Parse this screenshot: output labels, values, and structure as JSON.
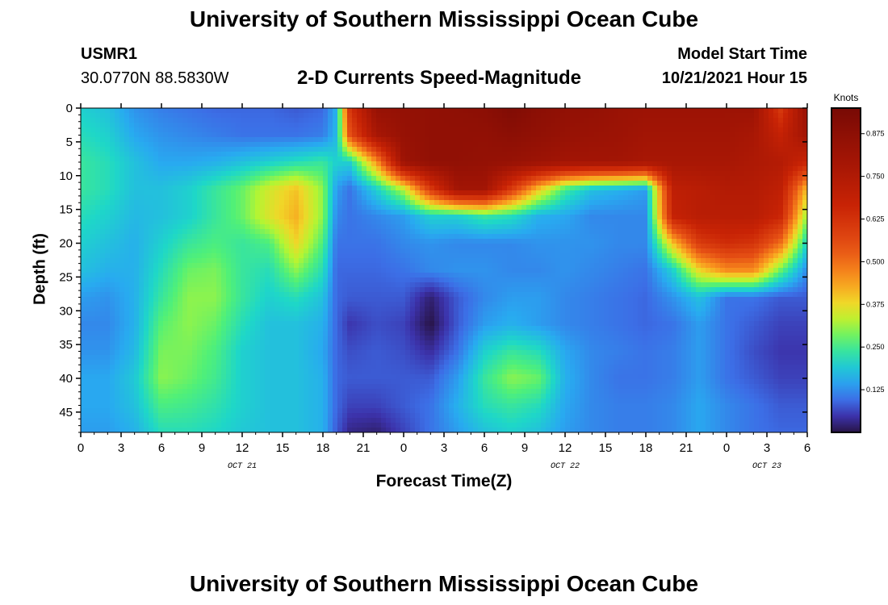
{
  "header": {
    "title": "University of Southern Mississippi Ocean Cube",
    "station": "USMR1",
    "coords": "30.0770N  88.5830W",
    "subtitle": "2-D Currents Speed-Magnitude",
    "model_label": "Model Start Time",
    "model_time": "10/21/2021 Hour 15"
  },
  "footer": {
    "title": "University of Southern Mississippi Ocean Cube"
  },
  "chart_data": {
    "type": "heatmap",
    "ylabel": "Depth (ft)",
    "xlabel": "Forecast Time(Z)",
    "colorbar_label": "Knots",
    "colorbar_ticks": [
      "0.875",
      "0.750",
      "0.625",
      "0.500",
      "0.375",
      "0.250",
      "0.125"
    ],
    "colorbar_tick_values": [
      0.875,
      0.75,
      0.625,
      0.5,
      0.375,
      0.25,
      0.125
    ],
    "value_range": [
      0,
      0.95
    ],
    "x_ticks": [
      "0",
      "3",
      "6",
      "9",
      "12",
      "15",
      "18",
      "21",
      "0",
      "3",
      "6",
      "9",
      "12",
      "15",
      "18",
      "21",
      "0",
      "3",
      "6"
    ],
    "x_range_hours": [
      0,
      54
    ],
    "date_labels": [
      {
        "label": "OCT 21",
        "hour": 12
      },
      {
        "label": "OCT 22",
        "hour": 36
      },
      {
        "label": "OCT 23",
        "hour": 51
      }
    ],
    "y_ticks": [
      "0",
      "5",
      "10",
      "15",
      "20",
      "25",
      "30",
      "35",
      "40",
      "45"
    ],
    "y_range": [
      0,
      48
    ],
    "depths": [
      0,
      4,
      8,
      12,
      16,
      20,
      24,
      28,
      32,
      36,
      40,
      44,
      48
    ],
    "hours": [
      0,
      2,
      4,
      6,
      8,
      10,
      12,
      14,
      16,
      18,
      19,
      20,
      22,
      24,
      26,
      28,
      30,
      32,
      34,
      36,
      38,
      40,
      42,
      44,
      46,
      48,
      50,
      52,
      54
    ],
    "values": [
      [
        0.2,
        0.18,
        0.13,
        0.11,
        0.1,
        0.09,
        0.09,
        0.09,
        0.08,
        0.09,
        0.16,
        0.62,
        0.84,
        0.85,
        0.86,
        0.87,
        0.88,
        0.92,
        0.88,
        0.86,
        0.85,
        0.83,
        0.82,
        0.82,
        0.82,
        0.82,
        0.82,
        0.6,
        0.84
      ],
      [
        0.22,
        0.2,
        0.15,
        0.13,
        0.12,
        0.11,
        0.1,
        0.1,
        0.1,
        0.11,
        0.17,
        0.55,
        0.78,
        0.84,
        0.86,
        0.86,
        0.86,
        0.88,
        0.86,
        0.84,
        0.83,
        0.82,
        0.8,
        0.8,
        0.8,
        0.8,
        0.78,
        0.68,
        0.8
      ],
      [
        0.24,
        0.22,
        0.18,
        0.15,
        0.15,
        0.16,
        0.18,
        0.2,
        0.22,
        0.24,
        0.2,
        0.2,
        0.45,
        0.82,
        0.86,
        0.86,
        0.85,
        0.84,
        0.82,
        0.8,
        0.8,
        0.8,
        0.78,
        0.78,
        0.78,
        0.78,
        0.76,
        0.74,
        0.66
      ],
      [
        0.24,
        0.22,
        0.18,
        0.18,
        0.2,
        0.24,
        0.28,
        0.35,
        0.4,
        0.3,
        0.14,
        0.1,
        0.2,
        0.33,
        0.6,
        0.8,
        0.8,
        0.6,
        0.4,
        0.25,
        0.18,
        0.16,
        0.14,
        0.7,
        0.72,
        0.74,
        0.74,
        0.7,
        0.4
      ],
      [
        0.22,
        0.2,
        0.17,
        0.18,
        0.2,
        0.24,
        0.28,
        0.36,
        0.42,
        0.3,
        0.12,
        0.1,
        0.12,
        0.14,
        0.2,
        0.2,
        0.24,
        0.22,
        0.16,
        0.15,
        0.12,
        0.12,
        0.12,
        0.68,
        0.72,
        0.72,
        0.72,
        0.66,
        0.3
      ],
      [
        0.2,
        0.18,
        0.16,
        0.2,
        0.24,
        0.26,
        0.24,
        0.26,
        0.38,
        0.26,
        0.1,
        0.1,
        0.1,
        0.12,
        0.13,
        0.12,
        0.12,
        0.12,
        0.13,
        0.13,
        0.13,
        0.12,
        0.12,
        0.4,
        0.6,
        0.64,
        0.62,
        0.5,
        0.2
      ],
      [
        0.18,
        0.16,
        0.16,
        0.22,
        0.28,
        0.29,
        0.24,
        0.22,
        0.3,
        0.22,
        0.09,
        0.09,
        0.09,
        0.1,
        0.12,
        0.13,
        0.13,
        0.12,
        0.12,
        0.13,
        0.12,
        0.11,
        0.1,
        0.2,
        0.38,
        0.46,
        0.46,
        0.28,
        0.12
      ],
      [
        0.14,
        0.13,
        0.16,
        0.24,
        0.3,
        0.3,
        0.24,
        0.2,
        0.22,
        0.18,
        0.09,
        0.08,
        0.08,
        0.08,
        0.02,
        0.08,
        0.12,
        0.14,
        0.14,
        0.12,
        0.11,
        0.1,
        0.09,
        0.13,
        0.18,
        0.1,
        0.1,
        0.08,
        0.08
      ],
      [
        0.12,
        0.12,
        0.16,
        0.27,
        0.3,
        0.28,
        0.22,
        0.18,
        0.18,
        0.16,
        0.09,
        0.05,
        0.07,
        0.06,
        0.0,
        0.08,
        0.14,
        0.16,
        0.14,
        0.12,
        0.11,
        0.1,
        0.09,
        0.1,
        0.14,
        0.1,
        0.08,
        0.06,
        0.06
      ],
      [
        0.13,
        0.13,
        0.17,
        0.29,
        0.29,
        0.26,
        0.2,
        0.18,
        0.18,
        0.15,
        0.09,
        0.07,
        0.08,
        0.07,
        0.04,
        0.1,
        0.2,
        0.24,
        0.22,
        0.15,
        0.12,
        0.11,
        0.1,
        0.11,
        0.14,
        0.1,
        0.07,
        0.05,
        0.05
      ],
      [
        0.15,
        0.15,
        0.19,
        0.3,
        0.28,
        0.25,
        0.2,
        0.18,
        0.18,
        0.16,
        0.09,
        0.08,
        0.08,
        0.08,
        0.08,
        0.14,
        0.24,
        0.3,
        0.28,
        0.16,
        0.12,
        0.1,
        0.1,
        0.11,
        0.14,
        0.1,
        0.08,
        0.06,
        0.06
      ],
      [
        0.15,
        0.15,
        0.18,
        0.26,
        0.25,
        0.23,
        0.2,
        0.18,
        0.18,
        0.16,
        0.09,
        0.06,
        0.06,
        0.08,
        0.1,
        0.16,
        0.22,
        0.24,
        0.22,
        0.15,
        0.12,
        0.11,
        0.11,
        0.12,
        0.15,
        0.12,
        0.1,
        0.08,
        0.08
      ],
      [
        0.14,
        0.14,
        0.16,
        0.22,
        0.22,
        0.21,
        0.19,
        0.18,
        0.18,
        0.16,
        0.08,
        0.03,
        0.02,
        0.06,
        0.1,
        0.14,
        0.18,
        0.2,
        0.18,
        0.14,
        0.12,
        0.11,
        0.11,
        0.12,
        0.15,
        0.12,
        0.1,
        0.09,
        0.09
      ]
    ]
  }
}
